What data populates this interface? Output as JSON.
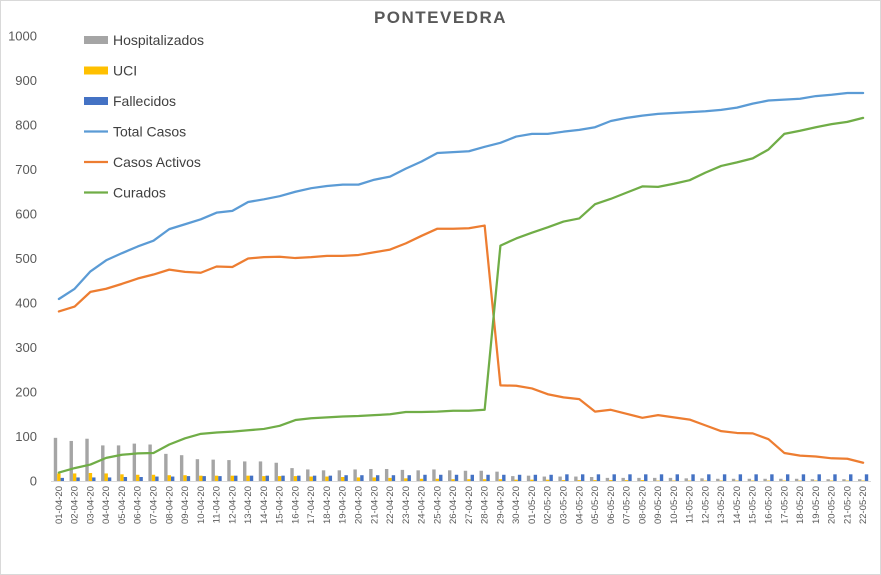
{
  "chart_data": {
    "type": "bar+line",
    "title": "PONTEVEDRA",
    "ylim": [
      0,
      1000
    ],
    "yticks": [
      0,
      100,
      200,
      300,
      400,
      500,
      600,
      700,
      800,
      900,
      1000
    ],
    "grid": false,
    "legend_position": "top-left",
    "categories": [
      "01-04-20",
      "02-04-20",
      "03-04-20",
      "04-04-20",
      "05-04-20",
      "06-04-20",
      "07-04-20",
      "08-04-20",
      "09-04-20",
      "10-04-20",
      "11-04-20",
      "12-04-20",
      "13-04-20",
      "14-04-20",
      "15-04-20",
      "16-04-20",
      "17-04-20",
      "18-04-20",
      "19-04-20",
      "20-04-20",
      "21-04-20",
      "22-04-20",
      "23-04-20",
      "24-04-20",
      "25-04-20",
      "26-04-20",
      "27-04-20",
      "28-04-20",
      "29-04-20",
      "30-04-20",
      "01-05-20",
      "02-05-20",
      "03-05-20",
      "04-05-20",
      "05-05-20",
      "06-05-20",
      "07-05-20",
      "08-05-20",
      "09-05-20",
      "10-05-20",
      "11-05-20",
      "12-05-20",
      "13-05-20",
      "14-05-20",
      "15-05-20",
      "16-05-20",
      "17-05-20",
      "18-05-20",
      "19-05-20",
      "20-05-20",
      "21-05-20",
      "22-05-20"
    ],
    "series": [
      {
        "name": "Hospitalizados",
        "kind": "bar",
        "color": "#a5a5a5",
        "values": [
          97,
          90,
          95,
          80,
          80,
          84,
          82,
          61,
          58,
          49,
          48,
          47,
          44,
          44,
          41,
          29,
          26,
          24,
          24,
          26,
          27,
          27,
          25,
          24,
          26,
          24,
          23,
          23,
          21,
          11,
          12,
          10,
          10,
          10,
          9,
          7,
          7,
          7,
          7,
          7,
          6,
          6,
          5,
          5,
          5,
          5,
          5,
          5,
          4,
          4,
          4,
          4
        ]
      },
      {
        "name": "UCI",
        "kind": "bar",
        "color": "#ffc000",
        "values": [
          17,
          17,
          18,
          17,
          15,
          14,
          14,
          13,
          13,
          12,
          12,
          12,
          12,
          11,
          11,
          11,
          10,
          10,
          9,
          8,
          8,
          7,
          6,
          5,
          5,
          4,
          4,
          4,
          4,
          3,
          3,
          3,
          2,
          2,
          2,
          2,
          2,
          2,
          1,
          1,
          1,
          1,
          1,
          1,
          1,
          1,
          1,
          1,
          1,
          1,
          1,
          1
        ]
      },
      {
        "name": "Fallecidos",
        "kind": "bar",
        "color": "#4472c4",
        "values": [
          7,
          8,
          8,
          8,
          9,
          9,
          10,
          10,
          11,
          11,
          11,
          12,
          12,
          12,
          12,
          12,
          12,
          12,
          13,
          13,
          13,
          13,
          13,
          14,
          14,
          14,
          14,
          14,
          14,
          14,
          14,
          14,
          15,
          15,
          15,
          15,
          15,
          15,
          15,
          15,
          15,
          15,
          15,
          15,
          15,
          15,
          15,
          15,
          15,
          15,
          15,
          15
        ]
      },
      {
        "name": "Total Casos",
        "kind": "line",
        "color": "#5b9bd5",
        "values": [
          409,
          432,
          471,
          496,
          512,
          527,
          540,
          566,
          577,
          588,
          603,
          607,
          627,
          633,
          640,
          650,
          658,
          663,
          666,
          666,
          677,
          684,
          702,
          718,
          737,
          739,
          741,
          751,
          760,
          774,
          780,
          780,
          785,
          789,
          795,
          809,
          816,
          821,
          825,
          827,
          829,
          831,
          834,
          839,
          848,
          855,
          857,
          859,
          865,
          868,
          872,
          872
        ]
      },
      {
        "name": "Casos Activos",
        "kind": "line",
        "color": "#ed7d31",
        "values": [
          381,
          392,
          425,
          432,
          443,
          455,
          464,
          475,
          470,
          468,
          482,
          481,
          500,
          503,
          504,
          501,
          503,
          506,
          506,
          508,
          514,
          520,
          534,
          551,
          567,
          567,
          568,
          574,
          215,
          214,
          208,
          195,
          188,
          184,
          156,
          160,
          151,
          142,
          148,
          143,
          138,
          125,
          112,
          108,
          107,
          94,
          63,
          57,
          55,
          51,
          50,
          41
        ]
      },
      {
        "name": "Curados",
        "kind": "line",
        "color": "#70ad47",
        "values": [
          19,
          29,
          37,
          52,
          59,
          62,
          63,
          82,
          96,
          106,
          109,
          111,
          114,
          117,
          124,
          137,
          141,
          143,
          145,
          146,
          148,
          150,
          155,
          155,
          156,
          158,
          158,
          160,
          529,
          545,
          558,
          570,
          583,
          590,
          622,
          634,
          648,
          662,
          661,
          668,
          676,
          693,
          708,
          716,
          725,
          745,
          780,
          787,
          795,
          802,
          807,
          816
        ]
      }
    ]
  }
}
